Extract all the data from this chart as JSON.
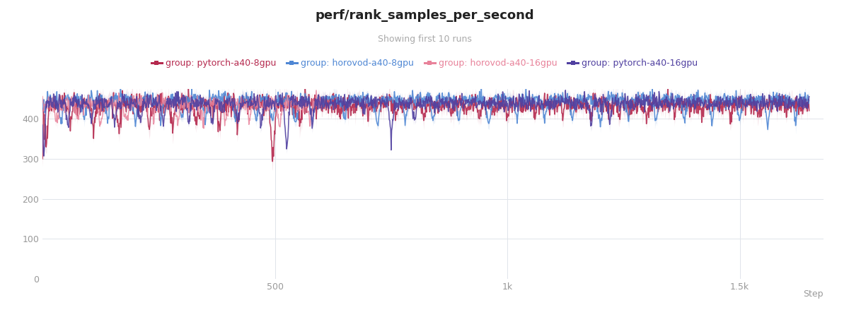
{
  "title": "perf/rank_samples_per_second",
  "subtitle": "Showing first 10 runs",
  "xlabel": "Step",
  "ylabel": "",
  "ylim": [
    0,
    475
  ],
  "xlim": [
    0,
    1680
  ],
  "yticks": [
    0,
    100,
    200,
    300,
    400
  ],
  "xticks": [
    500,
    1000,
    1500
  ],
  "xtick_labels": [
    "500",
    "1k",
    "1.5k"
  ],
  "background_color": "#ffffff",
  "grid_color": "#e0e4ea",
  "series": [
    {
      "label": "group: pytorch-a40-8gpu",
      "color": "#b5294e",
      "alpha_line": 0.9,
      "alpha_fill": 0.12,
      "linewidth": 1.1
    },
    {
      "label": "group: horovod-a40-8gpu",
      "color": "#4f87d4",
      "alpha_line": 0.9,
      "alpha_fill": 0.12,
      "linewidth": 1.1
    },
    {
      "label": "group: horovod-a40-16gpu",
      "color": "#e8829a",
      "alpha_line": 0.85,
      "alpha_fill": 0.08,
      "linewidth": 1.0
    },
    {
      "label": "group: pytorch-a40-16gpu",
      "color": "#5040a0",
      "alpha_line": 0.9,
      "alpha_fill": 0.1,
      "linewidth": 1.1
    }
  ],
  "title_fontsize": 13,
  "subtitle_fontsize": 9,
  "legend_fontsize": 9,
  "tick_fontsize": 9,
  "tick_color": "#999999"
}
